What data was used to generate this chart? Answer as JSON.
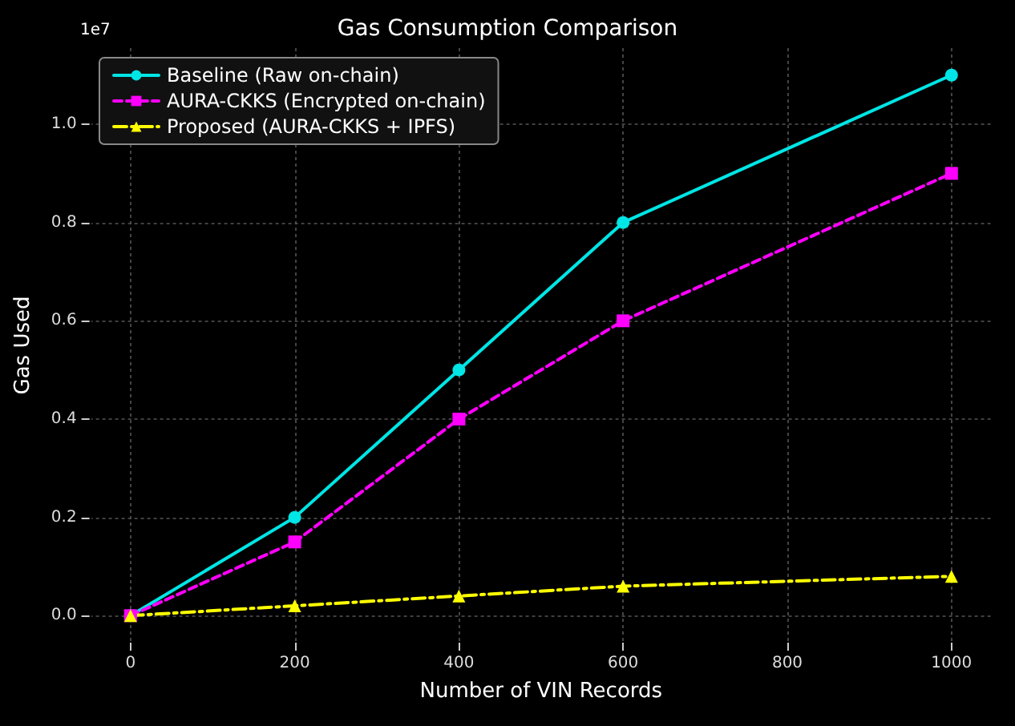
{
  "chart_data": {
    "type": "line",
    "title": "Gas Consumption Comparison",
    "xlabel": "Number of VIN Records",
    "ylabel": "Gas Used",
    "annotations": [
      "1e7"
    ],
    "x": [
      0,
      200,
      400,
      600,
      1000
    ],
    "series": [
      {
        "name": "Baseline (Raw on-chain)",
        "color": "#00e5e5",
        "marker": "circle",
        "line_style": "solid",
        "values": [
          0,
          0.2,
          0.5,
          0.8,
          1.1
        ]
      },
      {
        "name": "AURA-CKKS (Encrypted on-chain)",
        "color": "#ff00ff",
        "marker": "square",
        "line_style": "dashed",
        "values": [
          0,
          0.15,
          0.4,
          0.6,
          0.9
        ]
      },
      {
        "name": "Proposed (AURA-CKKS + IPFS)",
        "color": "#ffff00",
        "marker": "triangle",
        "line_style": "dashdot",
        "values": [
          0,
          0.02,
          0.04,
          0.06,
          0.08
        ]
      }
    ],
    "xlim": [
      -50,
      1050
    ],
    "xticks": [
      0,
      200,
      400,
      600,
      800,
      1000
    ],
    "ylim": [
      -0.055,
      1.155
    ],
    "yticks": [
      {
        "value": 0,
        "label": "0.0"
      },
      {
        "value": 0.2,
        "label": "0.2"
      },
      {
        "value": 0.4,
        "label": "0.4"
      },
      {
        "value": 0.6,
        "label": "0.6"
      },
      {
        "value": 0.8,
        "label": "0.8"
      },
      {
        "value": 1.0,
        "label": "1.0"
      }
    ],
    "grid": true,
    "legend": "top left"
  }
}
